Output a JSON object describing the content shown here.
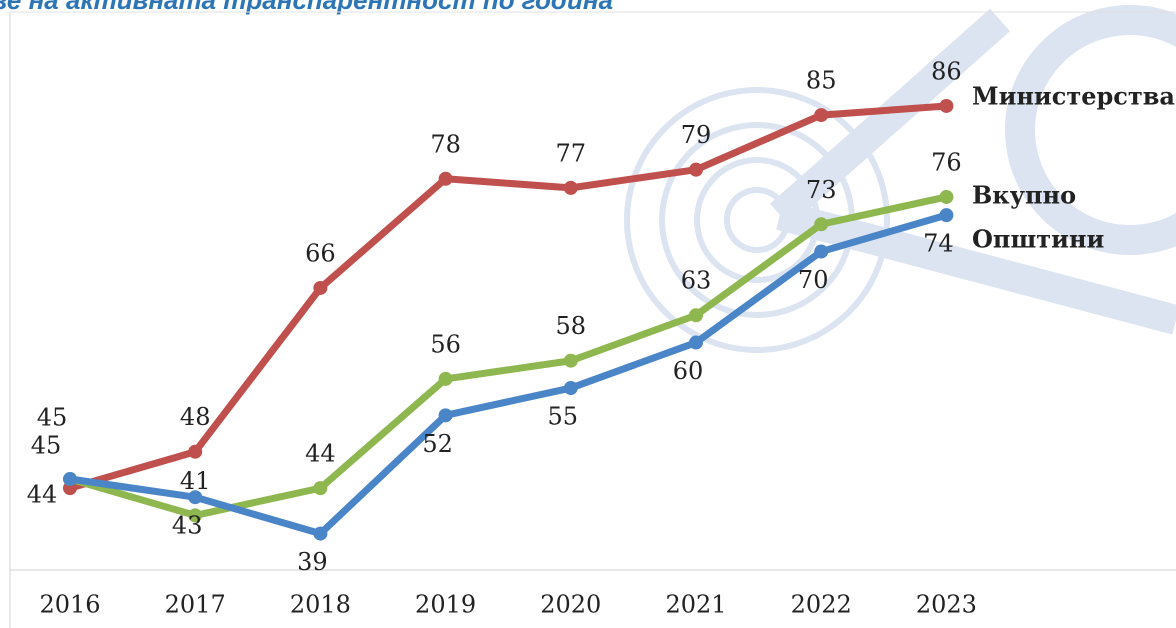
{
  "chart_data": {
    "type": "line",
    "title": "зе на активната транспарентност по година",
    "categories": [
      "2016",
      "2017",
      "2018",
      "2019",
      "2020",
      "2021",
      "2022",
      "2023"
    ],
    "series": [
      {
        "name": "Министерства",
        "color": "#c0504d",
        "values": [
          44,
          48,
          66,
          78,
          77,
          79,
          85,
          86
        ]
      },
      {
        "name": "Вкупно",
        "color": "#8fb74f",
        "values": [
          45,
          41,
          44,
          56,
          58,
          63,
          73,
          76
        ]
      },
      {
        "name": "Општини",
        "color": "#4a85c8",
        "values": [
          45,
          43,
          39,
          52,
          55,
          60,
          70,
          74
        ]
      }
    ],
    "ylim": [
      35,
      96
    ]
  }
}
